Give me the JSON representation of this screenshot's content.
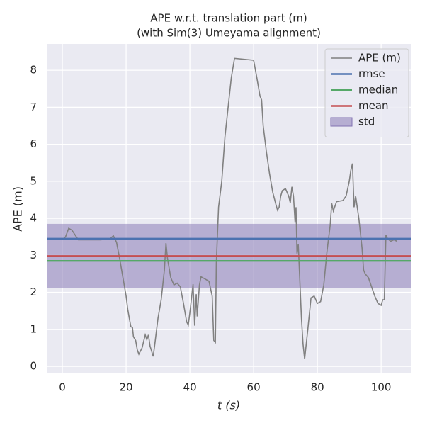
{
  "chart_data": {
    "type": "line",
    "title": "APE w.r.t. translation part (m)",
    "subtitle": "(with Sim(3) Umeyama alignment)",
    "xlabel": "t (s)",
    "ylabel": "APE (m)",
    "xlim": [
      -4.9,
      109.3
    ],
    "ylim": [
      -0.19,
      8.71
    ],
    "xticks": [
      0,
      20,
      40,
      60,
      80,
      100
    ],
    "yticks": [
      0,
      1,
      2,
      3,
      4,
      5,
      6,
      7,
      8
    ],
    "grid": true,
    "legend": "upper right",
    "series": [
      {
        "name": "APE (m)",
        "color": "#808080",
        "x": [
          0,
          1,
          2,
          3,
          4,
          5,
          8,
          12,
          15,
          16,
          17,
          18,
          19,
          20,
          20.5,
          21,
          21.5,
          22,
          22.3,
          23,
          23.5,
          24,
          25,
          26,
          26.5,
          27,
          27.5,
          28.5,
          29,
          30,
          31,
          32,
          32.5,
          33,
          34,
          35,
          36,
          37,
          38,
          39,
          39.5,
          40,
          41,
          41.5,
          42,
          42.3,
          43,
          43.5,
          45,
          46,
          47,
          47.5,
          48,
          48.3,
          49,
          50,
          51,
          52,
          53,
          54,
          60,
          61,
          62,
          62.5,
          63,
          64,
          65,
          66,
          67,
          67.5,
          68,
          68.5,
          69,
          70,
          71,
          71.5,
          72,
          72.5,
          73,
          73.3,
          73.6,
          74,
          74.5,
          75,
          75.5,
          76,
          77,
          78,
          79,
          80,
          81,
          82,
          83,
          84,
          84.5,
          85,
          86,
          88,
          89,
          90,
          90.5,
          91,
          91.5,
          92,
          93,
          94,
          94.5,
          95,
          96,
          97,
          98,
          99,
          100,
          100.5,
          101,
          101.5,
          102,
          103,
          104,
          105
        ],
        "values": [
          3.42,
          3.5,
          3.73,
          3.68,
          3.55,
          3.42,
          3.42,
          3.42,
          3.45,
          3.53,
          3.35,
          2.9,
          2.4,
          1.9,
          1.55,
          1.3,
          1.07,
          1.05,
          0.8,
          0.7,
          0.45,
          0.33,
          0.5,
          0.85,
          0.72,
          0.85,
          0.55,
          0.27,
          0.6,
          1.3,
          1.8,
          2.6,
          3.33,
          2.9,
          2.4,
          2.2,
          2.25,
          2.15,
          1.7,
          1.2,
          1.12,
          1.45,
          2.22,
          1.1,
          1.95,
          1.35,
          2.2,
          2.42,
          2.35,
          2.3,
          1.9,
          0.7,
          0.65,
          2.8,
          4.3,
          5.0,
          6.2,
          7.0,
          7.8,
          8.32,
          8.27,
          7.8,
          7.3,
          7.2,
          6.5,
          5.8,
          5.2,
          4.7,
          4.37,
          4.22,
          4.3,
          4.6,
          4.75,
          4.8,
          4.6,
          4.42,
          4.85,
          4.6,
          3.9,
          4.3,
          3.05,
          3.3,
          2.3,
          1.3,
          0.6,
          0.2,
          1.0,
          1.85,
          1.9,
          1.7,
          1.75,
          2.2,
          3.1,
          3.8,
          4.4,
          4.2,
          4.45,
          4.48,
          4.6,
          5.0,
          5.3,
          5.48,
          4.3,
          4.6,
          4.0,
          3.2,
          2.6,
          2.5,
          2.4,
          2.15,
          1.9,
          1.7,
          1.65,
          1.8,
          1.8,
          3.55,
          3.45,
          3.38,
          3.42,
          3.38
        ]
      }
    ],
    "hlines": [
      {
        "name": "rmse",
        "color": "#4c72b0",
        "value": 3.45
      },
      {
        "name": "median",
        "color": "#55a868",
        "value": 2.85
      },
      {
        "name": "mean",
        "color": "#c44e52",
        "value": 2.98
      }
    ],
    "band": {
      "name": "std",
      "color": "#8172b2",
      "value": 0.87
    }
  }
}
